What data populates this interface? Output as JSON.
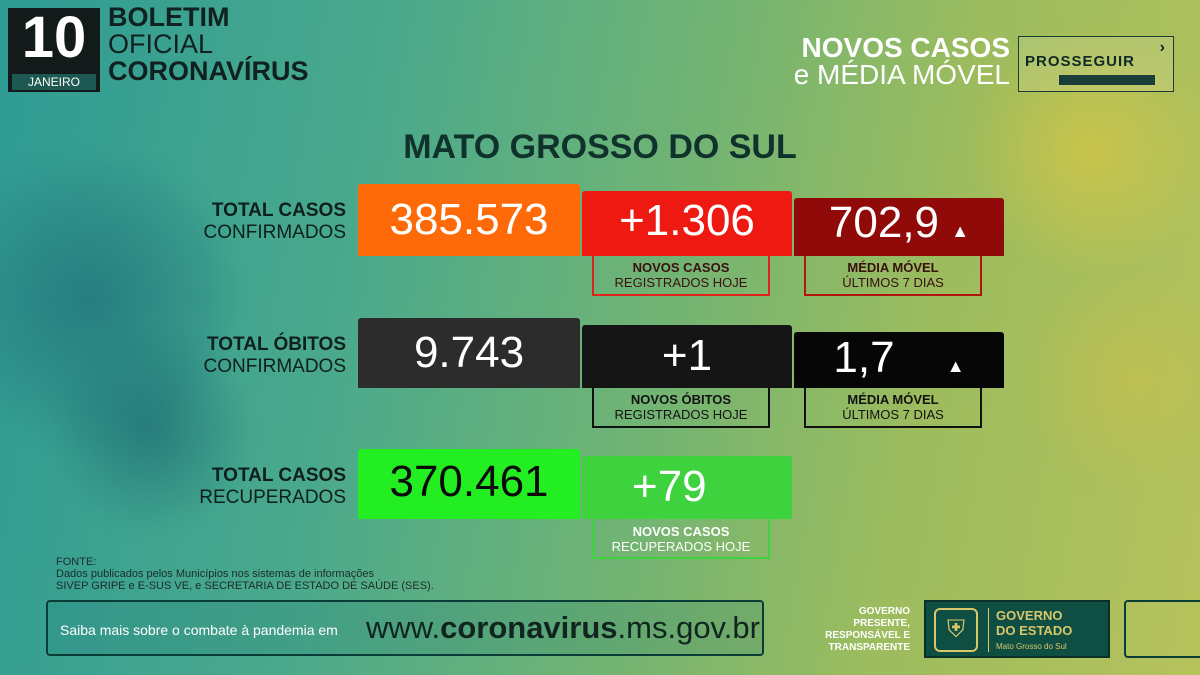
{
  "header": {
    "day": "10",
    "month": "JANEIRO",
    "boletim_line1": "BOLETIM",
    "boletim_line2": "OFICIAL",
    "boletim_line3": "CORONAVÍRUS",
    "right_line1": "NOVOS CASOS",
    "right_line2": "e MÉDIA MÓVEL",
    "prosseguir_logo_text": "PROSSEGUIR"
  },
  "title": "MATO GROSSO DO SUL",
  "rows": {
    "casos": {
      "label1": "TOTAL CASOS",
      "label2": "CONFIRMADOS",
      "total": "385.573",
      "novos": "+1.306",
      "novos_caption1": "NOVOS CASOS",
      "novos_caption2": "REGISTRADOS HOJE",
      "media": "702,9",
      "media_caption1": "MÉDIA MÓVEL",
      "media_caption2": "ÚLTIMOS 7 DIAS",
      "trend_icon": "triangle-up-icon"
    },
    "obitos": {
      "label1": "TOTAL ÓBITOS",
      "label2": "CONFIRMADOS",
      "total": "9.743",
      "novos": "+1",
      "novos_caption1": "NOVOS ÓBITOS",
      "novos_caption2": "REGISTRADOS HOJE",
      "media": "1,7",
      "media_caption1": "MÉDIA MÓVEL",
      "media_caption2": "ÚLTIMOS 7 DIAS",
      "trend_icon": "triangle-up-icon"
    },
    "recuperados": {
      "label1": "TOTAL CASOS",
      "label2": "RECUPERADOS",
      "total": "370.461",
      "novos": "+79",
      "novos_caption1": "NOVOS CASOS",
      "novos_caption2": "RECUPERADOS HOJE"
    }
  },
  "colors": {
    "casos_total": "#ff6a08",
    "casos_novos": "#ee1a12",
    "casos_media": "#8f0a08",
    "obitos_total": "#2c2c2c",
    "obitos_novos": "#151515",
    "obitos_media": "#060606",
    "recup_total": "#22ee22",
    "recup_novos": "#3ed23e"
  },
  "fonte": {
    "line1": "FONTE:",
    "line2": "Dados publicados pelos Municípios nos sistemas de informações",
    "line3": "SIVEP GRIPE e E-SUS VE, e SECRETARIA DE ESTADO DE SAÚDE (SES)."
  },
  "footer": {
    "saiba": "Saiba mais sobre o combate à pandemia em",
    "url_prefix": "www.",
    "url_bold": "coronavirus",
    "url_suffix": ".ms.gov.br",
    "gov_text1": "GOVERNO",
    "gov_text2": "PRESENTE,",
    "gov_text3": "RESPONSÁVEL E",
    "gov_text4": "TRANSPARENTE",
    "gov_logo1": "GOVERNO",
    "gov_logo2": "DO ESTADO",
    "gov_logo3": "Mato Grosso do Sul",
    "crest_icon": "state-crest-icon"
  }
}
